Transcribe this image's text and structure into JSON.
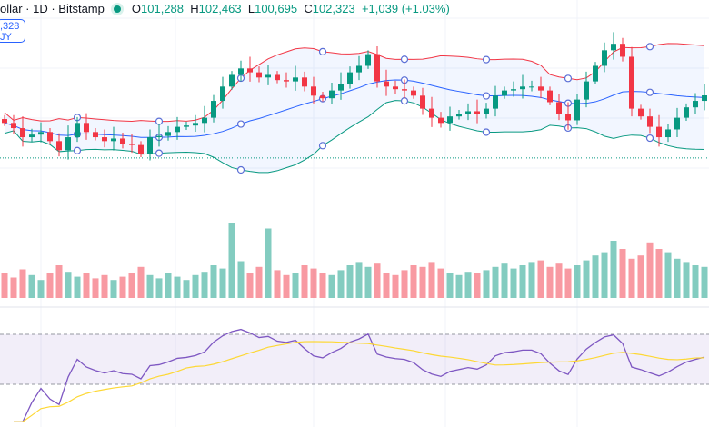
{
  "header": {
    "title": "ollar · 1D · Bitstamp",
    "o_label": "O",
    "open": "101,288",
    "h_label": "H",
    "high": "102,463",
    "l_label": "L",
    "low": "100,695",
    "c_label": "C",
    "close": "102,323",
    "change": "+1,039 (+1.03%)"
  },
  "buy_box": {
    "price": ",328",
    "label": "JY"
  },
  "colors": {
    "up": "#089981",
    "down": "#f23645",
    "upper_band": "#f23645",
    "basis": "#2962ff",
    "lower_band": "#089981",
    "band_fill": "#2962ff",
    "rsi": "#7e57c2",
    "rsi_ma": "#fdd835"
  },
  "chart_data": {
    "type": "candlestick",
    "closes": [
      100200,
      99800,
      99100,
      99300,
      99500,
      98800,
      98100,
      99100,
      100200,
      99500,
      99100,
      98800,
      99000,
      98600,
      98500,
      97800,
      99100,
      99200,
      99500,
      99900,
      100000,
      100200,
      100600,
      101900,
      103000,
      103900,
      104400,
      104100,
      103700,
      103900,
      103500,
      103400,
      103700,
      103000,
      102300,
      102100,
      102700,
      103200,
      104100,
      104600,
      105500,
      103400,
      103000,
      102800,
      102700,
      102300,
      101300,
      100600,
      100200,
      100700,
      100900,
      101100,
      100900,
      101300,
      102300,
      102700,
      102800,
      103000,
      103000,
      102700,
      101800,
      100900,
      100400,
      102000,
      103400,
      104600,
      105800,
      106300,
      105300,
      101300,
      100700,
      99900,
      99100,
      99700,
      100600,
      101400,
      101900,
      102323
    ],
    "volumes": [
      30,
      25,
      35,
      28,
      22,
      30,
      40,
      32,
      26,
      30,
      24,
      28,
      22,
      26,
      30,
      38,
      28,
      24,
      30,
      26,
      22,
      28,
      32,
      40,
      36,
      92,
      45,
      30,
      38,
      85,
      34,
      28,
      30,
      40,
      36,
      30,
      28,
      34,
      40,
      44,
      38,
      42,
      30,
      28,
      34,
      40,
      38,
      44,
      36,
      30,
      28,
      32,
      30,
      34,
      38,
      42,
      36,
      40,
      44,
      46,
      38,
      42,
      36,
      40,
      46,
      52,
      56,
      70,
      60,
      48,
      52,
      68,
      60,
      56,
      48,
      44,
      40,
      38
    ],
    "bollinger": {
      "period": 20,
      "stddev": 2
    },
    "rsi": {
      "period": 14,
      "ma_period": 14,
      "bands": [
        70,
        30
      ]
    },
    "price_line": 97500
  }
}
